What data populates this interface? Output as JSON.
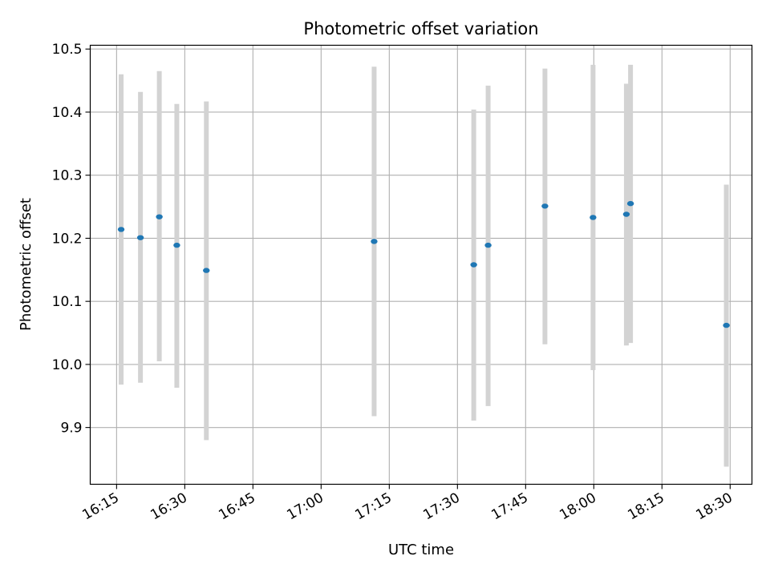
{
  "chart_data": {
    "type": "scatter",
    "title": "Photometric offset variation",
    "xlabel": "UTC time",
    "ylabel": "Photometric offset",
    "x_ticks": [
      "16:15",
      "16:30",
      "16:45",
      "17:00",
      "17:15",
      "17:30",
      "17:45",
      "18:00",
      "18:15",
      "18:30"
    ],
    "x_range": [
      "16:09:12",
      "18:34:48"
    ],
    "y_ticks": [
      "9.9",
      "10.0",
      "10.1",
      "10.2",
      "10.3",
      "10.4",
      "10.5"
    ],
    "ylim": [
      9.81,
      10.506
    ],
    "grid": true,
    "marker_color": "#1f77b4",
    "errorbar_color": "#d3d3d3",
    "points": [
      {
        "t": "16:16:00",
        "y": 10.214,
        "low": 9.968,
        "high": 10.46
      },
      {
        "t": "16:20:15",
        "y": 10.201,
        "low": 9.971,
        "high": 10.432
      },
      {
        "t": "16:24:24",
        "y": 10.234,
        "low": 10.005,
        "high": 10.465
      },
      {
        "t": "16:28:15",
        "y": 10.189,
        "low": 9.963,
        "high": 10.413
      },
      {
        "t": "16:34:45",
        "y": 10.149,
        "low": 9.88,
        "high": 10.417
      },
      {
        "t": "17:11:40",
        "y": 10.195,
        "low": 9.918,
        "high": 10.472
      },
      {
        "t": "17:33:35",
        "y": 10.158,
        "low": 9.911,
        "high": 10.404
      },
      {
        "t": "17:36:45",
        "y": 10.189,
        "low": 9.934,
        "high": 10.442
      },
      {
        "t": "17:49:15",
        "y": 10.251,
        "low": 10.032,
        "high": 10.469
      },
      {
        "t": "17:59:50",
        "y": 10.233,
        "low": 9.991,
        "high": 10.475
      },
      {
        "t": "18:07:10",
        "y": 10.238,
        "low": 10.03,
        "high": 10.445
      },
      {
        "t": "18:08:05",
        "y": 10.255,
        "low": 10.034,
        "high": 10.475
      },
      {
        "t": "18:29:10",
        "y": 10.062,
        "low": 9.838,
        "high": 10.285
      }
    ]
  }
}
